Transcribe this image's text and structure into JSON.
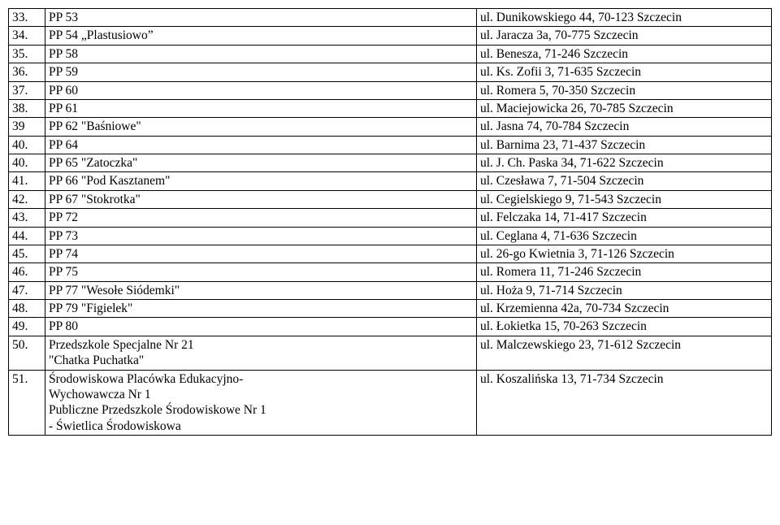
{
  "rows": [
    {
      "num": "33.",
      "name": "PP 53",
      "addr": "ul. Dunikowskiego 44, 70-123 Szczecin"
    },
    {
      "num": "34.",
      "name": "PP 54 „Plastusiowo”",
      "addr": "ul. Jaracza 3a, 70-775 Szczecin"
    },
    {
      "num": "35.",
      "name": "PP 58",
      "addr": "ul. Benesza, 71-246 Szczecin"
    },
    {
      "num": "36.",
      "name": "PP 59",
      "addr": "ul. Ks. Zofii 3, 71-635 Szczecin"
    },
    {
      "num": "37.",
      "name": "PP 60",
      "addr": "ul. Romera 5, 70-350 Szczecin"
    },
    {
      "num": "38.",
      "name": "PP 61",
      "addr": "ul. Maciejowicka 26, 70-785 Szczecin"
    },
    {
      "num": "39",
      "name": "PP 62 \"Baśniowe\"",
      "addr": "ul. Jasna 74, 70-784 Szczecin"
    },
    {
      "num": "40.",
      "name": "PP 64",
      "addr": "ul. Barnima 23, 71-437 Szczecin"
    },
    {
      "num": "40.",
      "name": "PP 65 \"Zatoczka\"",
      "addr": "ul. J. Ch. Paska 34, 71-622 Szczecin"
    },
    {
      "num": "41.",
      "name": "PP 66 \"Pod Kasztanem\"",
      "addr": "ul. Czesława 7, 71-504 Szczecin"
    },
    {
      "num": "42.",
      "name": "PP 67 \"Stokrotka\"",
      "addr": "ul. Cegielskiego 9, 71-543 Szczecin"
    },
    {
      "num": "43.",
      "name": "PP 72",
      "addr": "ul. Felczaka 14, 71-417 Szczecin"
    },
    {
      "num": "44.",
      "name": "PP 73",
      "addr": "ul. Ceglana 4, 71-636 Szczecin"
    },
    {
      "num": "45.",
      "name": "PP 74",
      "addr": "ul. 26-go Kwietnia 3, 71-126 Szczecin"
    },
    {
      "num": "46.",
      "name": "PP 75",
      "addr": "ul. Romera 11, 71-246 Szczecin"
    },
    {
      "num": "47.",
      "name": "PP 77 \"Wesołe Siódemki\"",
      "addr": "ul. Hoża 9, 71-714 Szczecin"
    },
    {
      "num": "48.",
      "name": "PP 79 \"Figielek\"",
      "addr": "ul. Krzemienna 42a, 70-734 Szczecin"
    },
    {
      "num": "49.",
      "name": "PP 80",
      "addr": "ul. Łokietka 15, 70-263 Szczecin"
    },
    {
      "num": "50.",
      "name": "Przedszkole Specjalne Nr 21\n\"Chatka Puchatka\"",
      "addr": "ul. Malczewskiego 23, 71-612 Szczecin"
    },
    {
      "num": "51.",
      "name": "Środowiskowa Placówka Edukacyjno-\nWychowawcza Nr 1\nPubliczne Przedszkole Środowiskowe Nr 1\n- Świetlica Środowiskowa",
      "addr": "ul. Koszalińska 13, 71-734 Szczecin"
    }
  ]
}
